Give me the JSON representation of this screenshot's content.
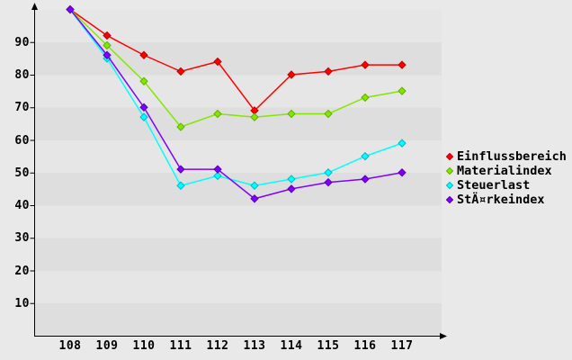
{
  "chart_data": {
    "type": "line",
    "title": "",
    "xlabel": "",
    "ylabel": "",
    "x": [
      108,
      109,
      110,
      111,
      112,
      113,
      114,
      115,
      116,
      117
    ],
    "yticks": [
      10,
      20,
      30,
      40,
      50,
      60,
      70,
      80,
      90
    ],
    "ylim": [
      0,
      100
    ],
    "grid": "alternating-horizontal-bands",
    "legend_position": "right",
    "marker": "diamond",
    "series": [
      {
        "name": "Einflussbereich",
        "color": "#ff0000",
        "marker_edge": "#c00000",
        "values": [
          100,
          92,
          86,
          81,
          84,
          69,
          80,
          81,
          83,
          83
        ]
      },
      {
        "name": "Materialindex",
        "color": "#84e600",
        "marker_edge": "#62b000",
        "values": [
          100,
          89,
          78,
          64,
          68,
          67,
          68,
          68,
          73,
          75
        ]
      },
      {
        "name": "Steuerlast",
        "color": "#00ffff",
        "marker_edge": "#00b8c8",
        "values": [
          100,
          85,
          67,
          46,
          49,
          46,
          48,
          50,
          55,
          59
        ]
      },
      {
        "name": "StÄ¤rkeindex",
        "color": "#7f00ff",
        "marker_edge": "#5a00b4",
        "values": [
          100,
          86,
          70,
          51,
          51,
          42,
          45,
          47,
          48,
          50
        ]
      }
    ],
    "colors": {
      "axis": "#000000",
      "text": "#000000",
      "background": "#e9e9e9",
      "band_light": "#e6e6e6",
      "band_dark": "#dedede"
    }
  }
}
